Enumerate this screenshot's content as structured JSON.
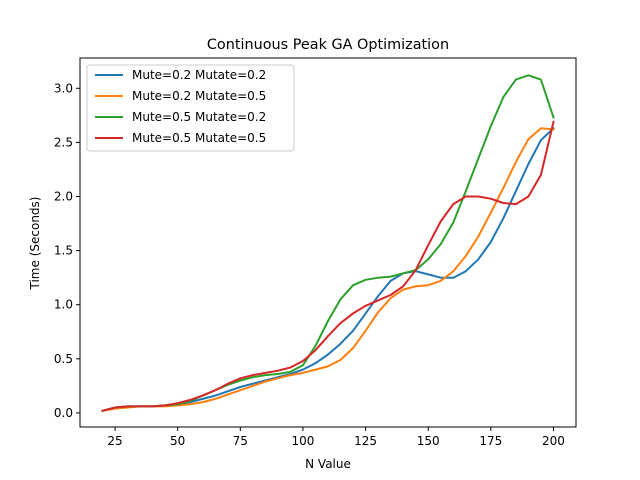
{
  "chart_data": {
    "type": "line",
    "title": "Continuous Peak GA Optimization",
    "xlabel": "N Value",
    "ylabel": "Time (Seconds)",
    "xlim": [
      11,
      209
    ],
    "ylim": [
      -0.13,
      3.28
    ],
    "xticks": [
      25,
      50,
      75,
      100,
      125,
      150,
      175,
      200
    ],
    "yticks": [
      0.0,
      0.5,
      1.0,
      1.5,
      2.0,
      2.5,
      3.0
    ],
    "xtick_labels": [
      "25",
      "50",
      "75",
      "100",
      "125",
      "150",
      "175",
      "200"
    ],
    "ytick_labels": [
      "0.0",
      "0.5",
      "1.0",
      "1.5",
      "2.0",
      "2.5",
      "3.0"
    ],
    "grid": false,
    "legend_position": "top-left",
    "x": [
      20,
      25,
      30,
      35,
      40,
      45,
      50,
      55,
      60,
      65,
      70,
      75,
      80,
      85,
      90,
      95,
      100,
      105,
      110,
      115,
      120,
      125,
      130,
      135,
      140,
      145,
      150,
      155,
      160,
      165,
      170,
      175,
      180,
      185,
      190,
      195,
      200
    ],
    "series": [
      {
        "name": "Mute=0.2 Mutate=0.2",
        "color": "#1f77b4",
        "values": [
          0.02,
          0.05,
          0.06,
          0.06,
          0.06,
          0.07,
          0.08,
          0.1,
          0.13,
          0.16,
          0.2,
          0.24,
          0.27,
          0.3,
          0.33,
          0.36,
          0.4,
          0.46,
          0.54,
          0.64,
          0.76,
          0.92,
          1.08,
          1.22,
          1.29,
          1.31,
          1.28,
          1.25,
          1.25,
          1.31,
          1.42,
          1.58,
          1.8,
          2.05,
          2.3,
          2.52,
          2.63
        ]
      },
      {
        "name": "Mute=0.2 Mutate=0.5",
        "color": "#ff7f0e",
        "values": [
          0.02,
          0.04,
          0.05,
          0.06,
          0.06,
          0.06,
          0.07,
          0.08,
          0.1,
          0.13,
          0.17,
          0.21,
          0.25,
          0.29,
          0.32,
          0.35,
          0.37,
          0.4,
          0.43,
          0.49,
          0.6,
          0.76,
          0.93,
          1.06,
          1.14,
          1.17,
          1.18,
          1.22,
          1.31,
          1.45,
          1.63,
          1.85,
          2.08,
          2.32,
          2.53,
          2.63,
          2.62
        ]
      },
      {
        "name": "Mute=0.5 Mutate=0.2",
        "color": "#2ca02c",
        "values": [
          0.02,
          0.05,
          0.06,
          0.06,
          0.06,
          0.07,
          0.08,
          0.11,
          0.16,
          0.21,
          0.26,
          0.3,
          0.33,
          0.35,
          0.36,
          0.38,
          0.44,
          0.62,
          0.85,
          1.05,
          1.18,
          1.23,
          1.25,
          1.26,
          1.29,
          1.32,
          1.42,
          1.56,
          1.76,
          2.05,
          2.35,
          2.65,
          2.92,
          3.08,
          3.12,
          3.08,
          2.73
        ]
      },
      {
        "name": "Mute=0.5 Mutate=0.5",
        "color": "#d62728",
        "values": [
          0.02,
          0.05,
          0.06,
          0.06,
          0.06,
          0.07,
          0.09,
          0.12,
          0.16,
          0.21,
          0.27,
          0.32,
          0.35,
          0.37,
          0.39,
          0.42,
          0.48,
          0.58,
          0.71,
          0.83,
          0.92,
          0.99,
          1.04,
          1.09,
          1.17,
          1.32,
          1.55,
          1.77,
          1.93,
          2.0,
          2.0,
          1.98,
          1.94,
          1.93,
          2.0,
          2.2,
          2.69
        ]
      }
    ]
  }
}
